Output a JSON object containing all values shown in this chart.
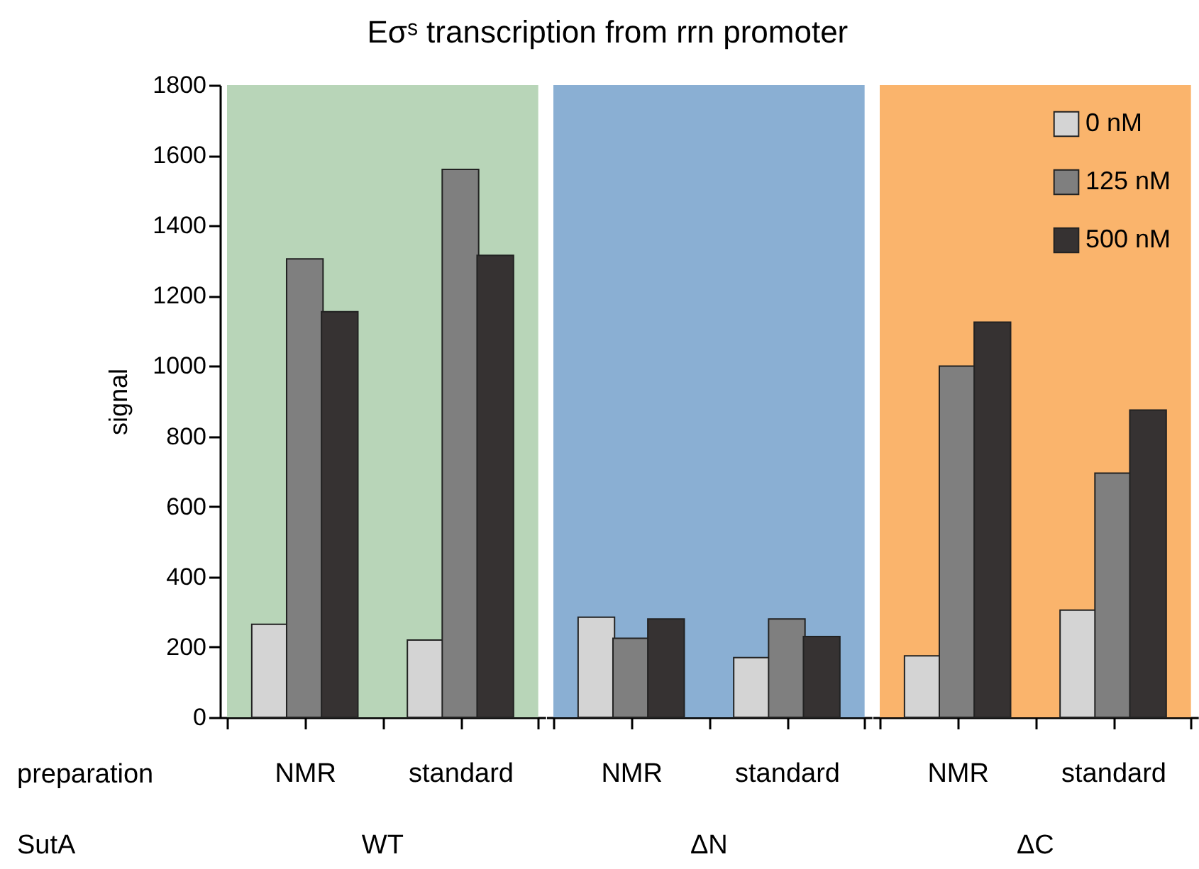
{
  "chart_data": [
    {
      "type": "bar",
      "title": "Eσˢ transcription from rrn promoter",
      "ylabel": "signal",
      "categories": [
        "NMR",
        "standard"
      ],
      "series": [
        {
          "color": "#d4d4d4",
          "values": [
            265,
            220
          ]
        },
        {
          "color": "#7f7f7f",
          "values": [
            1305,
            1560
          ]
        },
        {
          "color": "#363232",
          "values": [
            1155,
            1315
          ]
        }
      ],
      "ylim": [
        0,
        1800
      ],
      "yticks": [
        0,
        200,
        400,
        600,
        800,
        1000,
        1200,
        1400,
        1600,
        1800
      ],
      "bands": [
        {
          "axis": "x",
          "from": "NMR",
          "to": "standard",
          "color": "#b8d5b8"
        }
      ],
      "annotations": [
        "preparation",
        "SutA",
        "WT"
      ]
    },
    {
      "type": "bar",
      "categories": [
        "NMR",
        "standard"
      ],
      "series": [
        {
          "color": "#d4d4d4",
          "values": [
            285,
            170
          ]
        },
        {
          "color": "#7f7f7f",
          "values": [
            225,
            280
          ]
        },
        {
          "color": "#363232",
          "values": [
            280,
            230
          ]
        }
      ],
      "ylim": [
        0,
        1800
      ],
      "tick_labels": "x",
      "bands": [
        {
          "axis": "x",
          "from": "NMR",
          "to": "standard",
          "color": "#8aafd3"
        }
      ],
      "annotations": [
        "ΔN"
      ]
    },
    {
      "type": "bar",
      "categories": [
        "NMR",
        "standard"
      ],
      "series": [
        {
          "name": "0 nM",
          "color": "#d4d4d4",
          "values": [
            175,
            305
          ]
        },
        {
          "name": "125 nM",
          "color": "#7f7f7f",
          "values": [
            1000,
            695
          ]
        },
        {
          "name": "500 nM",
          "color": "#363232",
          "values": [
            1125,
            875
          ]
        }
      ],
      "ylim": [
        0,
        1800
      ],
      "tick_labels": "x",
      "legend": "top right",
      "bands": [
        {
          "axis": "x",
          "from": "NMR",
          "to": "standard",
          "color": "#fab46c"
        }
      ],
      "annotations": [
        "ΔC"
      ]
    }
  ]
}
